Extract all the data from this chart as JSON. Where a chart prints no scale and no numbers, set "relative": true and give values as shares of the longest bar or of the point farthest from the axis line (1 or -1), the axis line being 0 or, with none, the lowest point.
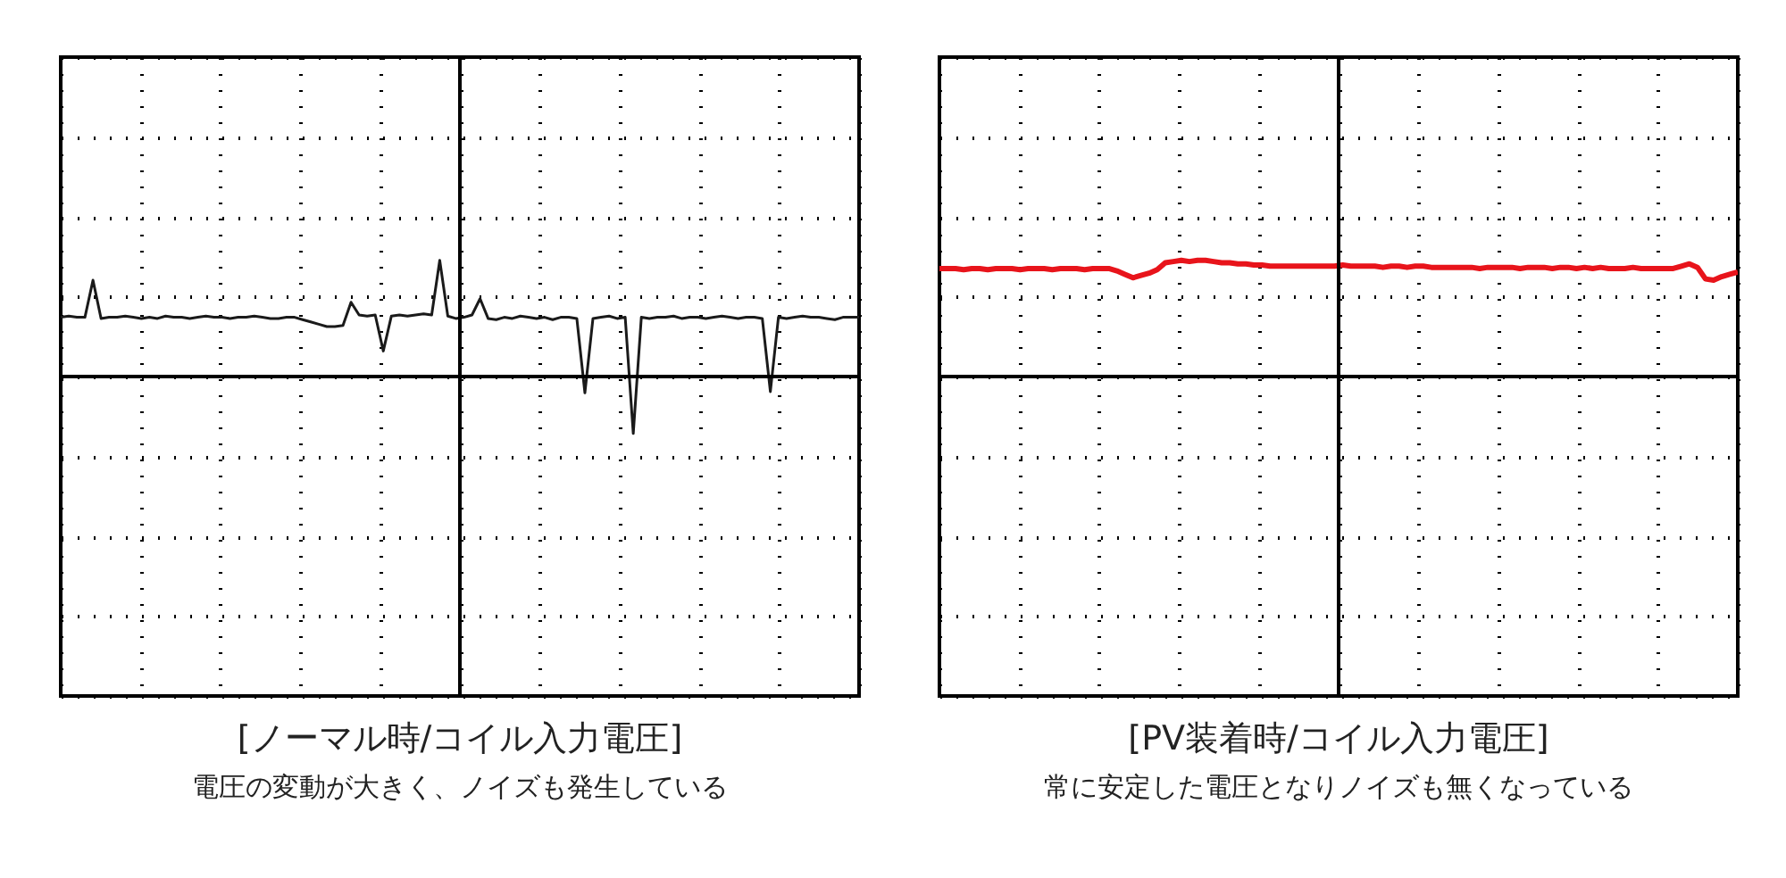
{
  "chart_data": [
    {
      "type": "line",
      "relative": true,
      "grid": true,
      "title": "[ノーマル時/コイル入力電圧]",
      "subtitle": "電圧の変動が大きく、ノイズも発生している",
      "categories": [
        null,
        null,
        null,
        null,
        null,
        null,
        null,
        null,
        null,
        null,
        null,
        null,
        null,
        null,
        null,
        null,
        null,
        null,
        null,
        null,
        null,
        null,
        null,
        null,
        null,
        null,
        null,
        null,
        null,
        null,
        null,
        null,
        null,
        null,
        null,
        null,
        null,
        null,
        null,
        null,
        null,
        null,
        null,
        null,
        null,
        null,
        null,
        null,
        null,
        null,
        null,
        null,
        null,
        null,
        null,
        null,
        null,
        null,
        null,
        null,
        null,
        null,
        null,
        null,
        null,
        null,
        null,
        null,
        null,
        null,
        null,
        null,
        null,
        null,
        null,
        null,
        null,
        null,
        null,
        null,
        null,
        null,
        null,
        null,
        null,
        null,
        null,
        null,
        null,
        null,
        null,
        null,
        null,
        null,
        null,
        null,
        null,
        null,
        null,
        null
      ],
      "series": [
        {
          "color": "#1a1a1a",
          "values": [
            0.51,
            0.52,
            0.51,
            0.51,
            0.83,
            0.5,
            0.51,
            0.51,
            0.52,
            0.51,
            0.5,
            0.51,
            0.5,
            0.52,
            0.51,
            0.51,
            0.5,
            0.51,
            0.52,
            0.51,
            0.51,
            0.5,
            0.51,
            0.51,
            0.52,
            0.51,
            0.5,
            0.5,
            0.51,
            0.51,
            0.49,
            0.47,
            0.45,
            0.43,
            0.43,
            0.44,
            0.64,
            0.53,
            0.52,
            0.53,
            0.22,
            0.52,
            0.53,
            0.52,
            0.53,
            0.54,
            0.53,
            1,
            0.52,
            0.5,
            0.51,
            0.53,
            0.67,
            0.5,
            0.49,
            0.51,
            0.5,
            0.52,
            0.51,
            0.5,
            0.51,
            0.49,
            0.51,
            0.51,
            0.5,
            -0.14,
            0.5,
            0.51,
            0.52,
            0.5,
            0.51,
            -0.49,
            0.51,
            0.5,
            0.51,
            0.51,
            0.52,
            0.5,
            0.51,
            0.51,
            0.5,
            0.51,
            0.52,
            0.51,
            0.5,
            0.51,
            0.51,
            0.5,
            -0.13,
            0.51,
            0.5,
            0.51,
            0.52,
            0.51,
            0.51,
            0.5,
            0.49,
            0.51,
            0.51,
            0.51
          ]
        }
      ]
    },
    {
      "type": "line",
      "relative": true,
      "grid": true,
      "title": "[PV装着時/コイル入力電圧]",
      "subtitle": "常に安定した電圧となりノイズも無くなっている",
      "categories": [
        null,
        null,
        null,
        null,
        null,
        null,
        null,
        null,
        null,
        null,
        null,
        null,
        null,
        null,
        null,
        null,
        null,
        null,
        null,
        null,
        null,
        null,
        null,
        null,
        null,
        null,
        null,
        null,
        null,
        null,
        null,
        null,
        null,
        null,
        null,
        null,
        null,
        null,
        null,
        null,
        null,
        null,
        null,
        null,
        null,
        null,
        null,
        null,
        null,
        null,
        null,
        null,
        null,
        null,
        null,
        null,
        null,
        null,
        null,
        null,
        null,
        null,
        null,
        null,
        null,
        null,
        null,
        null,
        null,
        null,
        null,
        null,
        null,
        null,
        null,
        null,
        null,
        null,
        null,
        null,
        null,
        null,
        null,
        null,
        null,
        null,
        null,
        null,
        null,
        null,
        null,
        null,
        null,
        null,
        null,
        null,
        null,
        null,
        null,
        null
      ],
      "series": [
        {
          "color": "#e8141b",
          "values": [
            0.93,
            0.93,
            0.93,
            0.92,
            0.93,
            0.93,
            0.92,
            0.93,
            0.93,
            0.93,
            0.92,
            0.93,
            0.93,
            0.93,
            0.92,
            0.93,
            0.93,
            0.93,
            0.92,
            0.93,
            0.93,
            0.93,
            0.91,
            0.88,
            0.85,
            0.87,
            0.89,
            0.92,
            0.98,
            0.99,
            1,
            0.99,
            1,
            1,
            0.99,
            0.98,
            0.98,
            0.97,
            0.97,
            0.96,
            0.96,
            0.95,
            0.95,
            0.95,
            0.95,
            0.95,
            0.95,
            0.95,
            0.95,
            0.95,
            0.96,
            0.95,
            0.95,
            0.95,
            0.95,
            0.94,
            0.95,
            0.95,
            0.94,
            0.95,
            0.95,
            0.94,
            0.94,
            0.94,
            0.94,
            0.94,
            0.94,
            0.93,
            0.94,
            0.94,
            0.94,
            0.94,
            0.93,
            0.94,
            0.94,
            0.94,
            0.93,
            0.94,
            0.94,
            0.93,
            0.94,
            0.93,
            0.94,
            0.93,
            0.93,
            0.93,
            0.94,
            0.93,
            0.93,
            0.93,
            0.93,
            0.93,
            0.95,
            0.97,
            0.94,
            0.84,
            0.83,
            0.86,
            0.88,
            0.9
          ]
        }
      ]
    }
  ]
}
